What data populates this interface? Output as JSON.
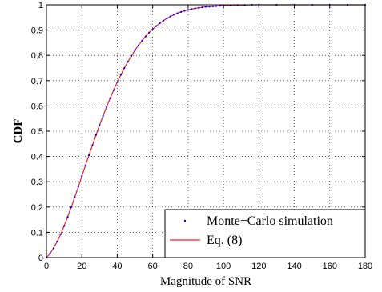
{
  "chart_data": {
    "type": "line",
    "title": "",
    "xlabel": "Magnitude of SNR",
    "ylabel": "CDF",
    "xlim": [
      0,
      180
    ],
    "ylim": [
      0,
      1
    ],
    "xticks": [
      0,
      20,
      40,
      60,
      80,
      100,
      120,
      140,
      160,
      180
    ],
    "yticks": [
      0,
      0.1,
      0.2,
      0.3,
      0.4,
      0.5,
      0.6,
      0.7,
      0.8,
      0.9,
      1
    ],
    "grid": true,
    "legend_position": "bottom-right",
    "series": [
      {
        "name": "Monte−Carlo simulation",
        "style": "points",
        "color": "#0000ff",
        "x": [
          0,
          2,
          4,
          6,
          8,
          10,
          12,
          14,
          16,
          18,
          20,
          22,
          24,
          26,
          28,
          30,
          32,
          34,
          36,
          38,
          40,
          42,
          44,
          46,
          48,
          50,
          52,
          54,
          56,
          58,
          60,
          62,
          64,
          66,
          68,
          70,
          72,
          74,
          76,
          78,
          80,
          82,
          84,
          86,
          88,
          90,
          92,
          94,
          96,
          98,
          100,
          104,
          108,
          112,
          116,
          120,
          130,
          140,
          150,
          160,
          170,
          180
        ],
        "y": [
          0,
          0.016,
          0.037,
          0.063,
          0.092,
          0.125,
          0.161,
          0.199,
          0.239,
          0.28,
          0.322,
          0.364,
          0.405,
          0.445,
          0.485,
          0.524,
          0.561,
          0.597,
          0.631,
          0.663,
          0.694,
          0.723,
          0.75,
          0.775,
          0.798,
          0.82,
          0.84,
          0.858,
          0.875,
          0.89,
          0.904,
          0.916,
          0.927,
          0.937,
          0.946,
          0.954,
          0.961,
          0.967,
          0.972,
          0.976,
          0.98,
          0.983,
          0.986,
          0.988,
          0.99,
          0.992,
          0.993,
          0.994,
          0.995,
          0.996,
          0.997,
          0.998,
          0.999,
          0.999,
          1,
          1,
          1,
          1,
          1,
          1,
          1,
          1
        ]
      },
      {
        "name": "Eq. (8)",
        "style": "line",
        "color": "#e8202a",
        "x": [
          0,
          2,
          4,
          6,
          8,
          10,
          12,
          14,
          16,
          18,
          20,
          22,
          24,
          26,
          28,
          30,
          32,
          34,
          36,
          38,
          40,
          42,
          44,
          46,
          48,
          50,
          52,
          54,
          56,
          58,
          60,
          62,
          64,
          66,
          68,
          70,
          72,
          74,
          76,
          78,
          80,
          82,
          84,
          86,
          88,
          90,
          92,
          94,
          96,
          98,
          100,
          104,
          108,
          112,
          116,
          120,
          130,
          140,
          150,
          160,
          170,
          180
        ],
        "y": [
          0,
          0.016,
          0.037,
          0.063,
          0.092,
          0.125,
          0.161,
          0.199,
          0.239,
          0.28,
          0.322,
          0.364,
          0.405,
          0.445,
          0.485,
          0.524,
          0.561,
          0.597,
          0.631,
          0.663,
          0.694,
          0.723,
          0.75,
          0.775,
          0.798,
          0.82,
          0.84,
          0.858,
          0.875,
          0.89,
          0.904,
          0.916,
          0.927,
          0.937,
          0.946,
          0.954,
          0.961,
          0.967,
          0.972,
          0.976,
          0.98,
          0.983,
          0.986,
          0.988,
          0.99,
          0.992,
          0.993,
          0.994,
          0.995,
          0.996,
          0.997,
          0.998,
          0.999,
          0.999,
          1,
          1,
          1,
          1,
          1,
          1,
          1,
          1
        ]
      }
    ]
  }
}
